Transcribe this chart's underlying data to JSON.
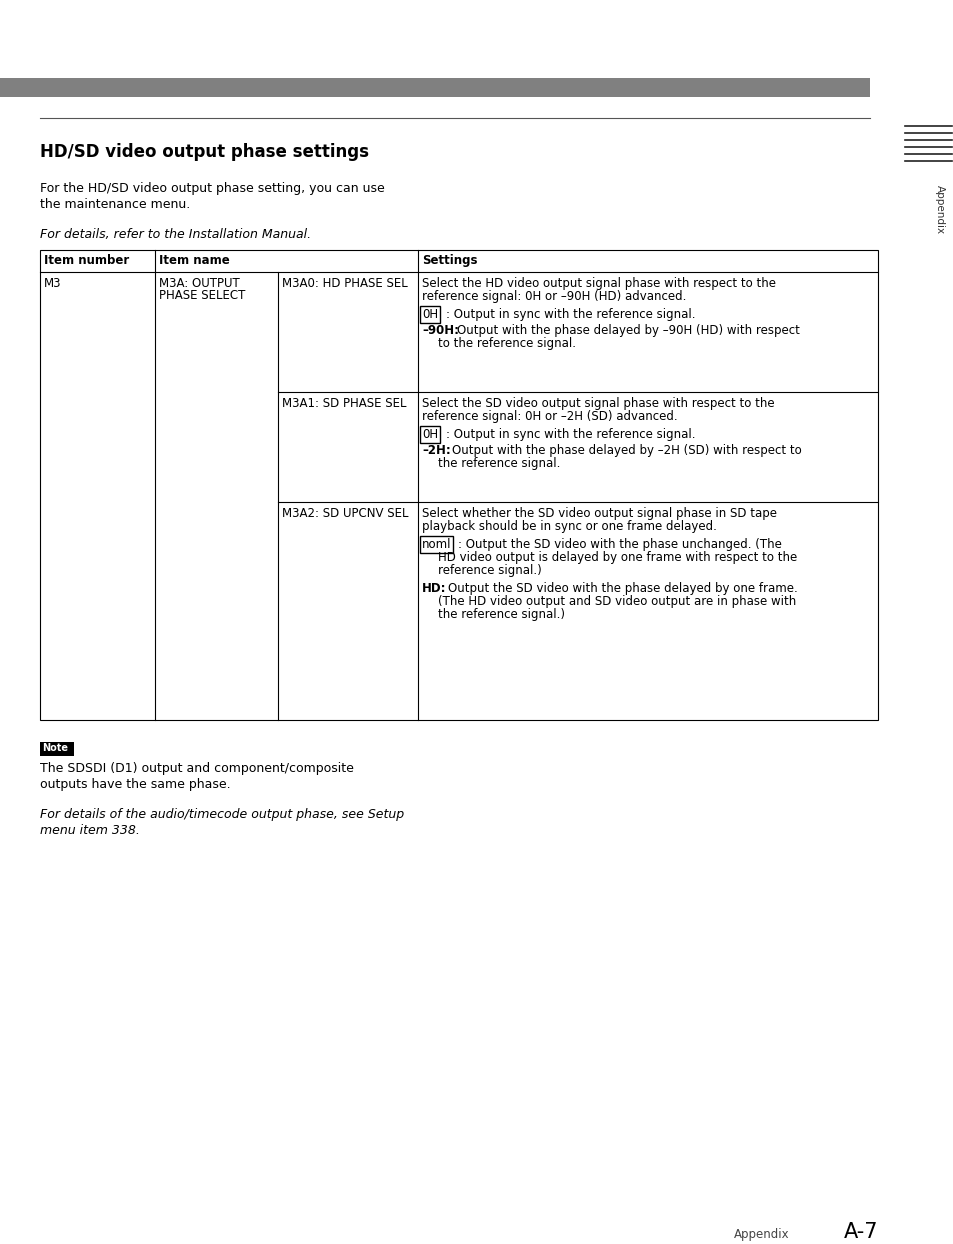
{
  "title": "HD/SD video output phase settings",
  "top_bar_color": "#808080",
  "bg_color": "#ffffff",
  "page_width": 9.54,
  "page_height": 12.44,
  "intro_text1": "For the HD/SD video output phase setting, you can use",
  "intro_text2": "the maintenance menu.",
  "italic_text1": "For details, refer to the Installation Manual.",
  "note_label": "Note",
  "note_text1": "The SDSDI (D1) output and component/composite",
  "note_text2": "outputs have the same phase.",
  "italic_text2": "For details of the audio/timecode output phase, see Setup",
  "italic_text3": "menu item 338.",
  "footer_text": "Appendix",
  "footer_page": "A-7",
  "sidebar_text": "Appendix"
}
